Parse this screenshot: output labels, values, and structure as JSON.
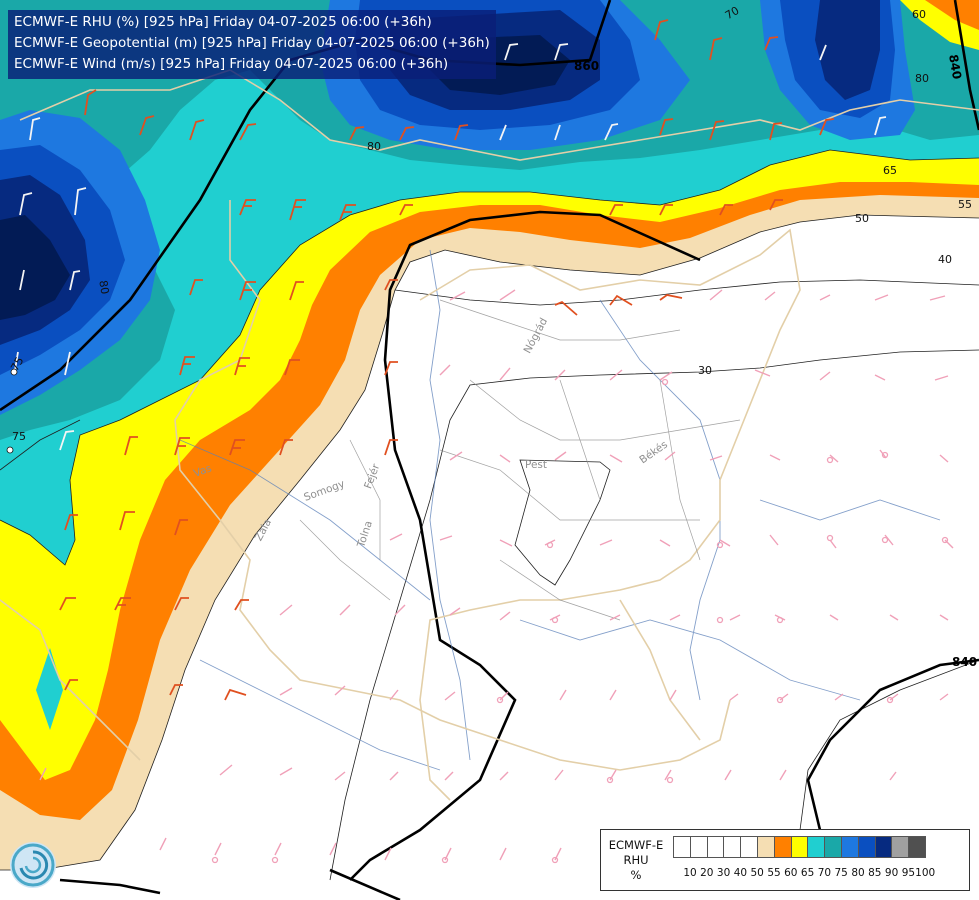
{
  "title_lines": [
    "ECMWF-E RHU (%) [925 hPa] Friday 04-07-2025 06:00 (+36h)",
    "ECMWF-E Geopotential (m) [925 hPa] Friday 04-07-2025 06:00 (+36h)",
    "ECMWF-E Wind (m/s) [925 hPa] Friday 04-07-2025 06:00 (+36h)"
  ],
  "legend": {
    "name_lines": [
      "ECMWF-E",
      "RHU",
      "%"
    ],
    "levels": [
      "10",
      "20",
      "30",
      "40",
      "50",
      "55",
      "60",
      "65",
      "70",
      "75",
      "80",
      "85",
      "90",
      "95",
      "100"
    ],
    "colors": [
      "#ffffff",
      "#ffffff",
      "#ffffff",
      "#ffffff",
      "#ffffff",
      "#f5deb3",
      "#ff8000",
      "#ffff00",
      "#20cfd0",
      "#1aa8a8",
      "#1e78e0",
      "#0a4fc0",
      "#062a80",
      "#a0a0a0",
      "#505050"
    ]
  },
  "rhu_contour_labels": [
    "70",
    "60",
    "80",
    "65",
    "55",
    "50",
    "40",
    "30",
    "80",
    "75",
    "75"
  ],
  "geopotential_labels": [
    "860",
    "840",
    "840"
  ],
  "region_labels": [
    "Nógrád",
    "Pest",
    "Békés",
    "Vas",
    "Somogy",
    "Fejér",
    "Zala",
    "Tolna"
  ],
  "colors": {
    "rhu_95_plus": "#021b55",
    "title_bg": "#0a1e78",
    "wind_barb_high_rh": "#e05020",
    "wind_barb_low_rh": "#f0a0b8",
    "border_line": "#e3cfa8",
    "river_line": "#5a7fb8"
  }
}
